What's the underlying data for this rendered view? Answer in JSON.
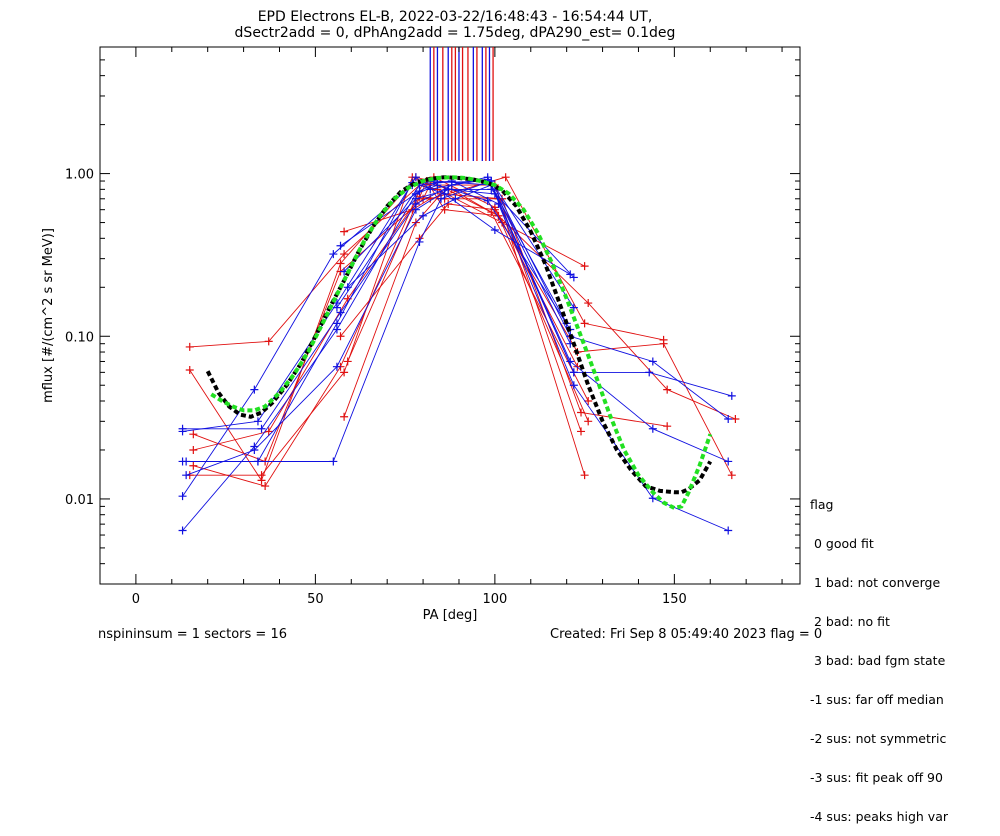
{
  "header": {
    "title_line1": "EPD Electrons EL-B, 2022-03-22/16:48:43 - 16:54:44 UT,",
    "title_line2": "dSectr2add = 0, dPhAng2add = 1.75deg, dPA290_est=   0.1deg"
  },
  "footer": {
    "left_text": "nspininsum =  1  sectors = 16",
    "right_text": "Created: Fri Sep  8 05:49:40 2023   flag = 0"
  },
  "flag_legend": {
    "title": "flag",
    "entries": [
      " 0 good fit",
      " 1 bad: not converge",
      " 2 bad: no fit",
      " 3 bad: bad fgm state",
      "-1 sus: far off median",
      "-2 sus: not symmetric",
      "-3 sus: fit peak off 90",
      "-4 sus: peaks high var"
    ]
  },
  "colors": {
    "red": "#e01010",
    "blue": "#1010e0",
    "fit_black": "#000000",
    "fit_green": "#22e022"
  },
  "chart_data": {
    "type": "line",
    "xlabel": "PA [deg]",
    "ylabel": "mflux [#/(cm^2 s sr MeV)]",
    "xlim": [
      -10,
      185
    ],
    "ylim": [
      0.003,
      6.0
    ],
    "yscale": "log",
    "xticks": [
      0,
      50,
      100,
      150
    ],
    "xtick_labels": [
      "0",
      "50",
      "100",
      "150"
    ],
    "yticks": [
      0.01,
      0.1,
      1.0
    ],
    "ytick_labels": [
      "0.01",
      "0.10",
      "1.00"
    ],
    "series": [
      {
        "color": "red",
        "x": [
          15,
          35,
          57,
          78,
          82,
          101,
          126
        ],
        "y": [
          0.062,
          0.013,
          0.28,
          0.95,
          0.9,
          0.55,
          0.03
        ]
      },
      {
        "color": "red",
        "x": [
          15,
          37,
          58,
          79,
          84,
          102,
          125
        ],
        "y": [
          0.086,
          0.093,
          0.32,
          0.85,
          0.8,
          0.5,
          0.27
        ]
      },
      {
        "color": "red",
        "x": [
          16,
          36,
          57,
          80,
          83,
          100,
          123
        ],
        "y": [
          0.025,
          0.017,
          0.25,
          0.7,
          0.95,
          0.62,
          0.065
        ]
      },
      {
        "color": "red",
        "x": [
          15,
          35,
          58,
          77,
          82,
          100,
          124
        ],
        "y": [
          0.014,
          0.014,
          0.06,
          0.95,
          0.85,
          0.85,
          0.026
        ]
      },
      {
        "color": "red",
        "x": [
          16,
          37,
          59,
          79,
          86,
          101,
          125
        ],
        "y": [
          0.02,
          0.026,
          0.17,
          0.72,
          0.7,
          0.7,
          0.014
        ]
      },
      {
        "color": "red",
        "x": [
          16,
          36,
          57,
          80,
          88,
          99,
          126
        ],
        "y": [
          0.016,
          0.012,
          0.065,
          0.88,
          0.8,
          0.58,
          0.04
        ]
      },
      {
        "color": "red",
        "x": [
          58,
          77,
          82,
          103,
          125,
          147
        ],
        "y": [
          0.44,
          0.6,
          0.7,
          0.95,
          0.12,
          0.095
        ]
      },
      {
        "color": "red",
        "x": [
          58,
          78,
          85,
          102,
          124,
          148
        ],
        "y": [
          0.032,
          0.5,
          0.75,
          0.7,
          0.034,
          0.028
        ]
      },
      {
        "color": "red",
        "x": [
          57,
          79,
          87,
          100,
          123,
          147,
          166
        ],
        "y": [
          0.1,
          0.4,
          0.65,
          0.6,
          0.08,
          0.09,
          0.014
        ]
      },
      {
        "color": "red",
        "x": [
          59,
          81,
          86,
          101,
          126,
          148,
          167
        ],
        "y": [
          0.07,
          0.9,
          0.6,
          0.55,
          0.16,
          0.047,
          0.031
        ]
      },
      {
        "color": "blue",
        "x": [
          13,
          34,
          56,
          78,
          82,
          98,
          121
        ],
        "y": [
          0.026,
          0.03,
          0.16,
          0.95,
          0.8,
          0.95,
          0.09
        ]
      },
      {
        "color": "blue",
        "x": [
          13,
          33,
          55,
          77,
          83,
          99,
          122
        ],
        "y": [
          0.0104,
          0.047,
          0.32,
          0.85,
          0.9,
          0.85,
          0.06
        ]
      },
      {
        "color": "blue",
        "x": [
          13,
          33,
          56,
          78,
          84,
          98,
          121
        ],
        "y": [
          0.0064,
          0.021,
          0.11,
          0.75,
          0.85,
          0.68,
          0.11
        ]
      },
      {
        "color": "blue",
        "x": [
          13,
          34,
          55,
          79,
          85,
          99,
          122
        ],
        "y": [
          0.017,
          0.017,
          0.017,
          0.38,
          0.7,
          0.9,
          0.15
        ]
      },
      {
        "color": "blue",
        "x": [
          14,
          34,
          56,
          77,
          86,
          100,
          121
        ],
        "y": [
          0.017,
          0.017,
          0.12,
          0.88,
          0.75,
          0.45,
          0.24
        ]
      },
      {
        "color": "blue",
        "x": [
          14,
          33,
          56,
          78,
          87,
          99,
          122
        ],
        "y": [
          0.014,
          0.02,
          0.065,
          0.6,
          0.8,
          0.8,
          0.23
        ]
      },
      {
        "color": "blue",
        "x": [
          13,
          35,
          57,
          78,
          88,
          98,
          120
        ],
        "y": [
          0.027,
          0.027,
          0.14,
          0.65,
          0.85,
          0.92,
          0.12
        ]
      },
      {
        "color": "blue",
        "x": [
          57,
          79,
          84,
          99,
          121,
          144,
          165
        ],
        "y": [
          0.36,
          0.78,
          0.88,
          0.9,
          0.1,
          0.07,
          0.031
        ]
      },
      {
        "color": "blue",
        "x": [
          58,
          78,
          87,
          100,
          122,
          143,
          166
        ],
        "y": [
          0.25,
          0.7,
          0.8,
          0.75,
          0.06,
          0.06,
          0.043
        ]
      },
      {
        "color": "blue",
        "x": [
          59,
          80,
          89,
          99,
          121,
          144,
          165
        ],
        "y": [
          0.2,
          0.55,
          0.7,
          0.85,
          0.07,
          0.027,
          0.017
        ]
      },
      {
        "color": "blue",
        "x": [
          56,
          79,
          88,
          101,
          122,
          144,
          165
        ],
        "y": [
          0.15,
          0.85,
          0.9,
          0.65,
          0.05,
          0.0101,
          0.0064
        ]
      }
    ],
    "fit_curves": [
      {
        "color": "fit_black",
        "style": "dashed",
        "x": [
          20,
          23,
          26,
          29,
          32,
          35,
          38,
          42,
          46,
          50,
          54,
          58,
          62,
          66,
          70,
          74,
          78,
          82,
          86,
          90,
          94,
          98,
          102,
          106,
          110,
          114,
          118,
          122,
          126,
          130,
          134,
          138,
          142,
          146,
          150,
          152,
          154,
          157,
          160
        ],
        "y": [
          0.061,
          0.045,
          0.037,
          0.033,
          0.032,
          0.034,
          0.039,
          0.05,
          0.068,
          0.1,
          0.15,
          0.22,
          0.33,
          0.47,
          0.63,
          0.78,
          0.88,
          0.93,
          0.95,
          0.94,
          0.92,
          0.88,
          0.79,
          0.63,
          0.44,
          0.28,
          0.16,
          0.09,
          0.05,
          0.03,
          0.02,
          0.015,
          0.012,
          0.0112,
          0.011,
          0.011,
          0.0115,
          0.013,
          0.017
        ]
      },
      {
        "color": "fit_green",
        "style": "dashed",
        "x": [
          21,
          24,
          27,
          30,
          33,
          36,
          40,
          44,
          48,
          52,
          56,
          60,
          64,
          68,
          72,
          76,
          80,
          84,
          88,
          92,
          96,
          100,
          104,
          108,
          112,
          116,
          120,
          124,
          128,
          132,
          136,
          140,
          144,
          147,
          150,
          152,
          154,
          157,
          160
        ],
        "y": [
          0.044,
          0.04,
          0.037,
          0.035,
          0.035,
          0.037,
          0.045,
          0.058,
          0.08,
          0.12,
          0.18,
          0.27,
          0.4,
          0.55,
          0.7,
          0.82,
          0.9,
          0.94,
          0.95,
          0.94,
          0.9,
          0.85,
          0.75,
          0.6,
          0.43,
          0.28,
          0.17,
          0.1,
          0.058,
          0.033,
          0.02,
          0.014,
          0.011,
          0.0095,
          0.0088,
          0.009,
          0.011,
          0.016,
          0.025
        ]
      }
    ],
    "sector_markers": [
      {
        "color": "blue",
        "x": 82
      },
      {
        "color": "red",
        "x": 83
      },
      {
        "color": "blue",
        "x": 84
      },
      {
        "color": "red",
        "x": 85.5
      },
      {
        "color": "blue",
        "x": 87
      },
      {
        "color": "red",
        "x": 88
      },
      {
        "color": "red",
        "x": 89
      },
      {
        "color": "blue",
        "x": 90
      },
      {
        "color": "red",
        "x": 91
      },
      {
        "color": "red",
        "x": 92.5
      },
      {
        "color": "blue",
        "x": 94
      },
      {
        "color": "red",
        "x": 95
      },
      {
        "color": "blue",
        "x": 96.5
      },
      {
        "color": "red",
        "x": 97.5
      },
      {
        "color": "blue",
        "x": 98.5
      },
      {
        "color": "red",
        "x": 99.5
      }
    ]
  }
}
